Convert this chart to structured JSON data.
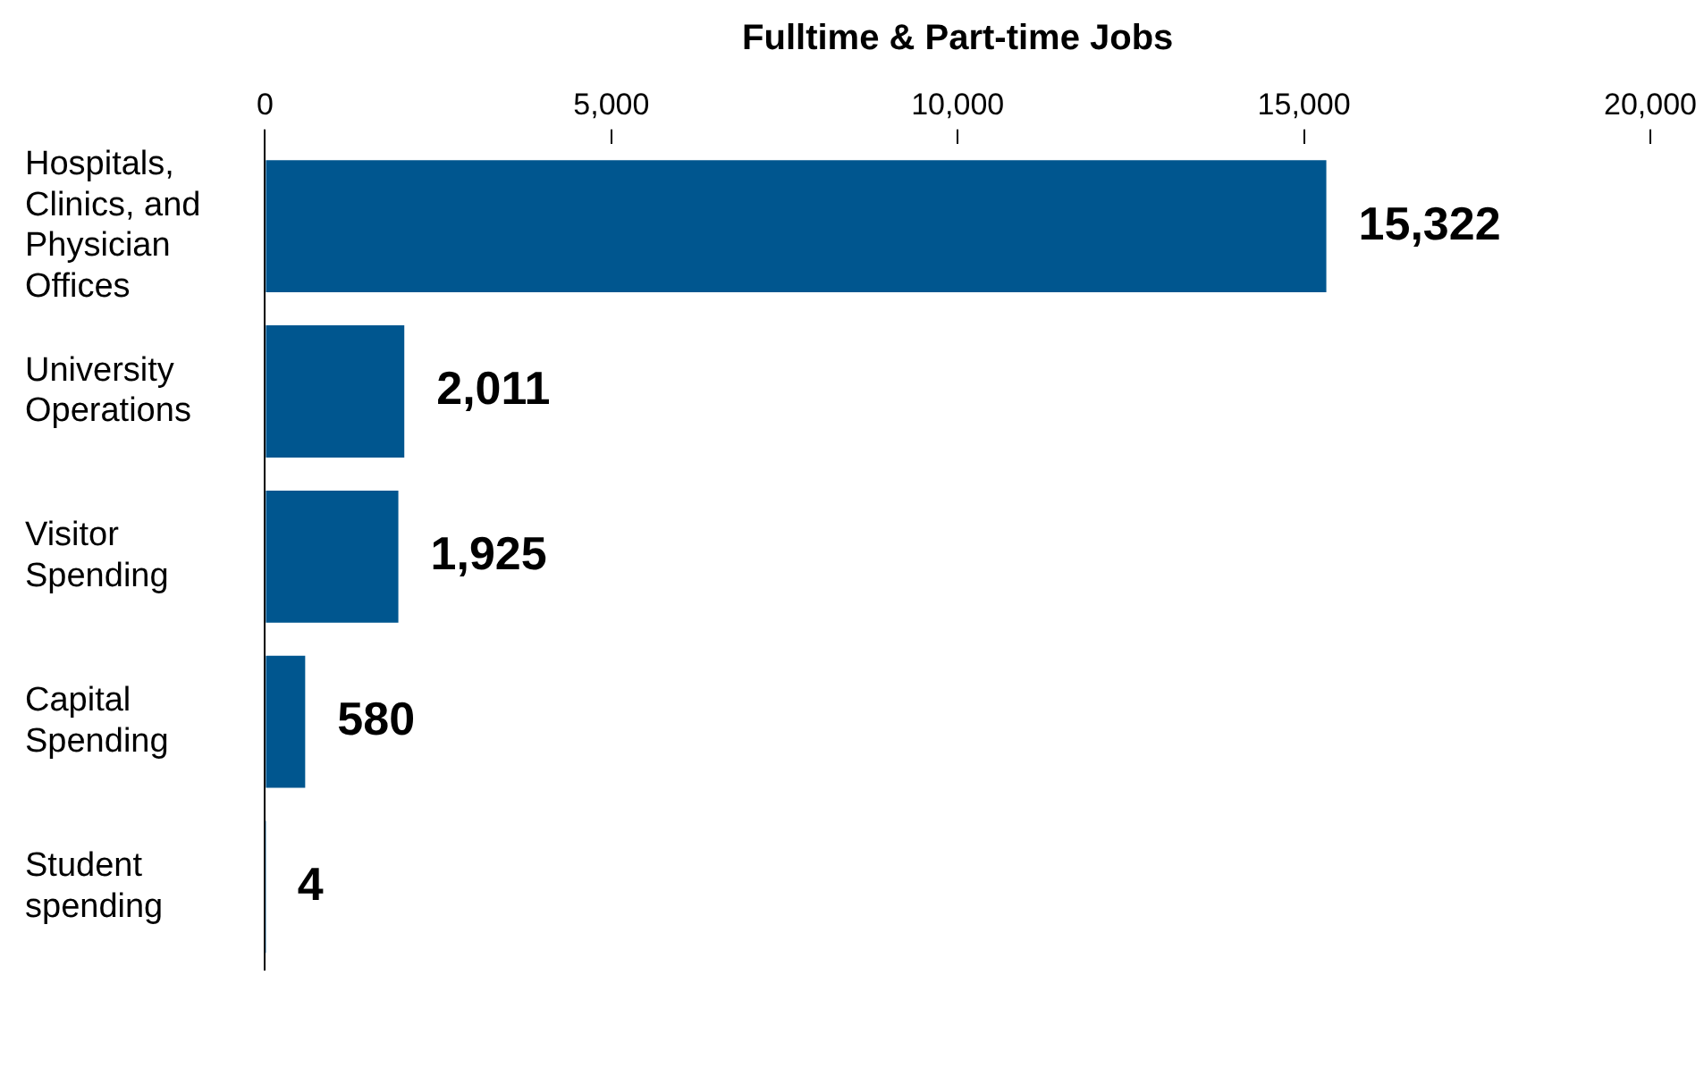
{
  "chart_data": {
    "type": "bar",
    "orientation": "horizontal",
    "xlabel": "Fulltime & Part-time Jobs",
    "categories": [
      "Hospitals, Clinics, and Physician Offices",
      "University Operations",
      "Visitor Spending",
      "Capital Spending",
      "Student spending"
    ],
    "values": [
      15322,
      2011,
      1925,
      580,
      4
    ],
    "color": "#00568f",
    "xlim": [
      0,
      20000
    ],
    "xticks": [
      {
        "value": 0,
        "label": "0"
      },
      {
        "value": 5000,
        "label": "5,000"
      },
      {
        "value": 10000,
        "label": "10,000"
      },
      {
        "value": 15000,
        "label": "15,000"
      },
      {
        "value": 20000,
        "label": "20,000"
      }
    ],
    "value_labels": [
      "15,322",
      "2,011",
      "1,925",
      "580",
      "4"
    ],
    "grid": false,
    "legend": false
  }
}
